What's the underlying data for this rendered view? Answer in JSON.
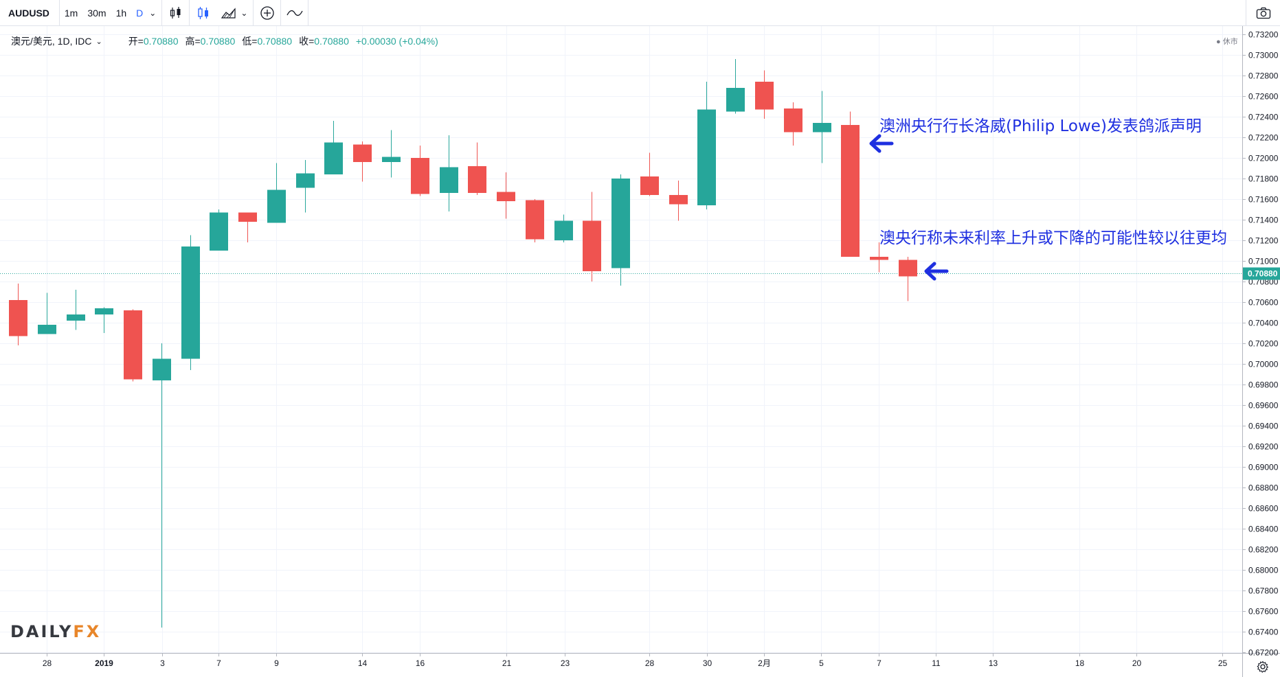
{
  "toolbar": {
    "symbol": "AUDUSD",
    "intervals": [
      {
        "label": "1m",
        "active": false
      },
      {
        "label": "30m",
        "active": false
      },
      {
        "label": "1h",
        "active": false
      },
      {
        "label": "D",
        "active": true
      }
    ],
    "icons": [
      "candles-icon",
      "bars-icon",
      "area-chart-icon",
      "add-indicator-icon",
      "drawing-icon",
      "camera-icon"
    ]
  },
  "legend": {
    "symbol": "澳元/美元, 1D, IDC",
    "open_label": "开=",
    "open": "0.70880",
    "high_label": "高=",
    "high": "0.70880",
    "low_label": "低=",
    "low": "0.70880",
    "close_label": "收=",
    "close": "0.70880",
    "change": "+0.00030 (+0.04%)"
  },
  "status": "休市",
  "annotations": [
    {
      "text": "澳洲央行行长洛威(Philip Lowe)发表鸽派声明"
    },
    {
      "text": "澳央行称未来利率上升或下降的可能性较以往更均"
    }
  ],
  "logo": {
    "part1": "DAILY",
    "part2": "FX"
  },
  "colors": {
    "up": "#26a69a",
    "down": "#ef5350",
    "annotation": "#1e2fe0",
    "last_price": "#26a69a"
  },
  "chart_data": {
    "type": "candlestick",
    "ylim": [
      0.671,
      0.733
    ],
    "y_ticks": [
      "0.73200",
      "0.73000",
      "0.72800",
      "0.72600",
      "0.72400",
      "0.72200",
      "0.72000",
      "0.71800",
      "0.71600",
      "0.71400",
      "0.71200",
      "0.71000",
      "0.70880",
      "0.70800",
      "0.70600",
      "0.70400",
      "0.70200",
      "0.70000",
      "0.69800",
      "0.69600",
      "0.69400",
      "0.69200",
      "0.69000",
      "0.68800",
      "0.68600",
      "0.68400",
      "0.68200",
      "0.68000",
      "0.67800",
      "0.67600",
      "0.67400",
      "0.67200"
    ],
    "x_ticks": [
      "28",
      "2019",
      "3",
      "7",
      "9",
      "14",
      "16",
      "21",
      "23",
      "28",
      "30",
      "2月",
      "5",
      "7",
      "11",
      "13",
      "18",
      "20",
      "25"
    ],
    "last_price": 0.7088,
    "candles": [
      {
        "o": 0.7062,
        "h": 0.7078,
        "l": 0.7018,
        "c": 0.7027
      },
      {
        "o": 0.7029,
        "h": 0.7069,
        "l": 0.7029,
        "c": 0.7038
      },
      {
        "o": 0.7042,
        "h": 0.7072,
        "l": 0.7033,
        "c": 0.7048
      },
      {
        "o": 0.7048,
        "h": 0.7055,
        "l": 0.703,
        "c": 0.7054
      },
      {
        "o": 0.7052,
        "h": 0.7053,
        "l": 0.6983,
        "c": 0.6985
      },
      {
        "o": 0.6984,
        "h": 0.702,
        "l": 0.6744,
        "c": 0.7005
      },
      {
        "o": 0.7005,
        "h": 0.7125,
        "l": 0.6994,
        "c": 0.7114
      },
      {
        "o": 0.711,
        "h": 0.715,
        "l": 0.711,
        "c": 0.7147
      },
      {
        "o": 0.7147,
        "h": 0.7147,
        "l": 0.7118,
        "c": 0.7138
      },
      {
        "o": 0.7137,
        "h": 0.7195,
        "l": 0.7137,
        "c": 0.7169
      },
      {
        "o": 0.7171,
        "h": 0.7198,
        "l": 0.7147,
        "c": 0.7185
      },
      {
        "o": 0.7184,
        "h": 0.7236,
        "l": 0.7184,
        "c": 0.7215
      },
      {
        "o": 0.7213,
        "h": 0.7216,
        "l": 0.7177,
        "c": 0.7196
      },
      {
        "o": 0.7196,
        "h": 0.7227,
        "l": 0.7181,
        "c": 0.7201
      },
      {
        "o": 0.72,
        "h": 0.7212,
        "l": 0.7163,
        "c": 0.7165
      },
      {
        "o": 0.7166,
        "h": 0.7222,
        "l": 0.7148,
        "c": 0.7191
      },
      {
        "o": 0.7192,
        "h": 0.7215,
        "l": 0.7164,
        "c": 0.7166
      },
      {
        "o": 0.7167,
        "h": 0.7186,
        "l": 0.7141,
        "c": 0.7158
      },
      {
        "o": 0.7159,
        "h": 0.716,
        "l": 0.7118,
        "c": 0.7121
      },
      {
        "o": 0.712,
        "h": 0.7145,
        "l": 0.7118,
        "c": 0.7139
      },
      {
        "o": 0.7139,
        "h": 0.7167,
        "l": 0.708,
        "c": 0.709
      },
      {
        "o": 0.7093,
        "h": 0.7184,
        "l": 0.7076,
        "c": 0.718
      },
      {
        "o": 0.7182,
        "h": 0.7205,
        "l": 0.7163,
        "c": 0.7164
      },
      {
        "o": 0.7164,
        "h": 0.7178,
        "l": 0.7139,
        "c": 0.7155
      },
      {
        "o": 0.7154,
        "h": 0.7274,
        "l": 0.715,
        "c": 0.7247
      },
      {
        "o": 0.7245,
        "h": 0.7296,
        "l": 0.7243,
        "c": 0.7268
      },
      {
        "o": 0.7274,
        "h": 0.7285,
        "l": 0.7238,
        "c": 0.7247
      },
      {
        "o": 0.7248,
        "h": 0.7254,
        "l": 0.7212,
        "c": 0.7225
      },
      {
        "o": 0.7225,
        "h": 0.7265,
        "l": 0.7195,
        "c": 0.7234
      },
      {
        "o": 0.7232,
        "h": 0.7245,
        "l": 0.7104,
        "c": 0.7104
      },
      {
        "o": 0.7104,
        "h": 0.7118,
        "l": 0.7089,
        "c": 0.7101
      },
      {
        "o": 0.7101,
        "h": 0.7104,
        "l": 0.7061,
        "c": 0.7085
      }
    ]
  }
}
